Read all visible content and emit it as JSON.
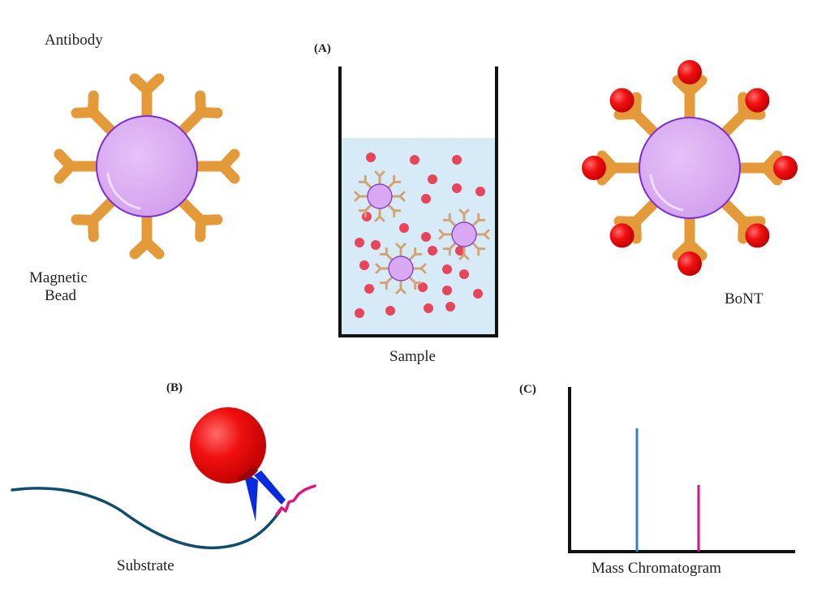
{
  "labels": {
    "antibody": "Antibody",
    "magnetic": "Magnetic",
    "bead": "Bead",
    "panel_a": "(A)",
    "sample": "Sample",
    "bont": "BoNT",
    "panel_b": "(B)",
    "substrate": "Substrate",
    "panel_c": "(C)",
    "chromatogram": "Mass Chromatogram"
  },
  "colors": {
    "bead_fill": "#d9a8f2",
    "bead_stroke": "#7b2fd0",
    "antibody": "#e59a3a",
    "antibody_small": "#d4a373",
    "toxin": "#ee1111",
    "sample_liquid": "#d6eaf8",
    "sample_dot": "#e8455a",
    "substrate": "#0f4c6e",
    "cleavage": "#e3137e",
    "enzyme_blade": "#0a2ae0",
    "peak_1": "#2f7fd1",
    "peak_2": "#d2127f"
  },
  "chromatogram_peaks": [
    {
      "position": 0.33,
      "relative_height": 0.75
    },
    {
      "position": 0.6,
      "relative_height": 0.4
    }
  ]
}
